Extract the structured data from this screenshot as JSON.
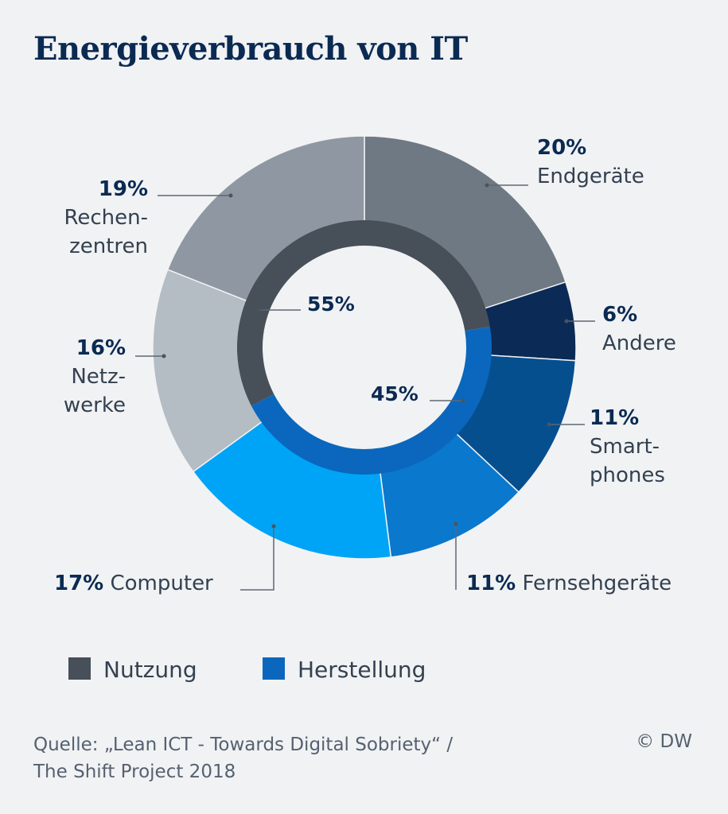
{
  "title": "Energieverbrauch von IT",
  "chart_data": {
    "type": "pie",
    "subtype": "donut",
    "outer_ring": [
      {
        "key": "endgeraete",
        "label": "Endgeräte",
        "value": 20,
        "pct": "20%",
        "color": "#6e7983"
      },
      {
        "key": "andere",
        "label": "Andere",
        "value": 6,
        "pct": "6%",
        "color": "#0b2a56"
      },
      {
        "key": "smartphones",
        "label": "Smart-\nphones",
        "value": 11,
        "pct": "11%",
        "color": "#064f8f"
      },
      {
        "key": "fernseh",
        "label": "Fernsehgeräte",
        "value": 11,
        "pct": "11%",
        "color": "#0a78cc"
      },
      {
        "key": "computer",
        "label": "Computer",
        "value": 17,
        "pct": "17%",
        "color": "#00a4f6"
      },
      {
        "key": "netzwerke",
        "label": "Netz-\nwerke",
        "value": 16,
        "pct": "16%",
        "color": "#b4bcc4"
      },
      {
        "key": "rechenzentren",
        "label": "Rechen-\nzentren",
        "value": 19,
        "pct": "19%",
        "color": "#8f98a2"
      }
    ],
    "inner_ring": [
      {
        "key": "herstellung",
        "label": "Herstellung",
        "value": 45,
        "pct": "45%",
        "color": "#0a67bd"
      },
      {
        "key": "nutzung",
        "label": "Nutzung",
        "value": 55,
        "pct": "55%",
        "color": "#474f59"
      }
    ]
  },
  "legend": [
    {
      "label": "Nutzung",
      "color": "#474f59"
    },
    {
      "label": "Herstellung",
      "color": "#0a67bd"
    }
  ],
  "source": {
    "line1": "Quelle: „Lean ICT - Towards Digital Sobriety“ /",
    "line2": "The Shift Project 2018"
  },
  "credit": "© DW"
}
